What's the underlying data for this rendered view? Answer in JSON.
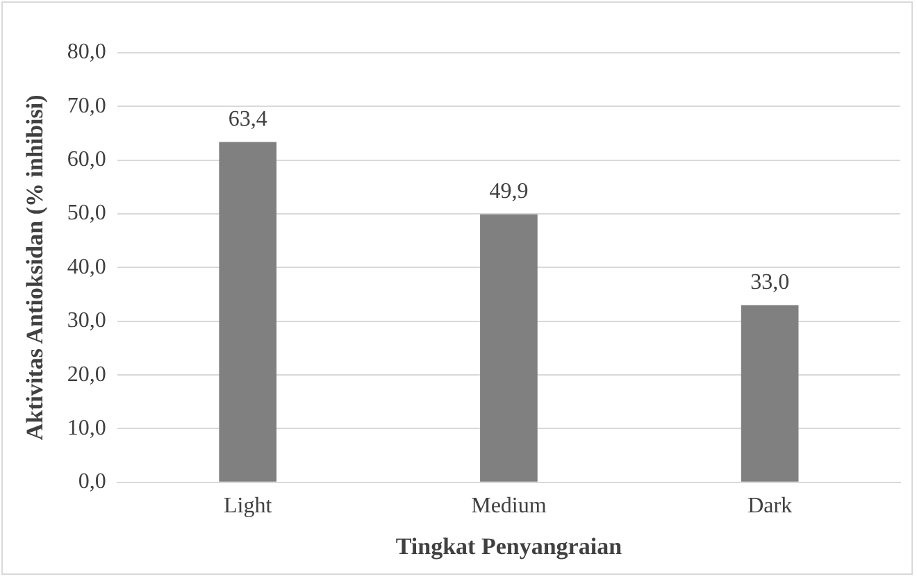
{
  "chart_data": {
    "type": "bar",
    "xlabel": "Tingkat Penyangraian",
    "ylabel": "Aktivitas Antioksidan (% inhibisi)",
    "categories": [
      "Light",
      "Medium",
      "Dark"
    ],
    "values": [
      63.4,
      49.9,
      33.0
    ],
    "value_labels": [
      "63,4",
      "49,9",
      "33,0"
    ],
    "color": "#808080",
    "ylim": [
      0,
      80
    ],
    "yticks": [
      {
        "value": 0,
        "label": "0,0"
      },
      {
        "value": 10,
        "label": "10,0"
      },
      {
        "value": 20,
        "label": "20,0"
      },
      {
        "value": 30,
        "label": "30,0"
      },
      {
        "value": 40,
        "label": "40,0"
      },
      {
        "value": 50,
        "label": "50,0"
      },
      {
        "value": 60,
        "label": "60,0"
      },
      {
        "value": 70,
        "label": "70,0"
      },
      {
        "value": 80,
        "label": "80,0"
      }
    ],
    "grid": "y",
    "legend": false
  }
}
